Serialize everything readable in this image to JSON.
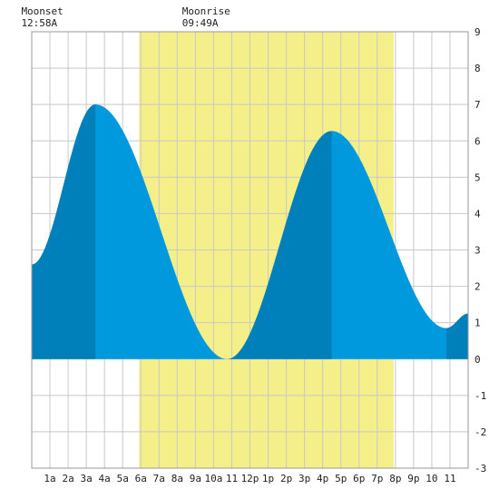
{
  "chart_data": {
    "type": "area",
    "title": "",
    "xlabel": "",
    "ylabel": "",
    "x_unit": "hours after midnight",
    "xlim": [
      0,
      24
    ],
    "ylim": [
      -3,
      9
    ],
    "y_ticks": [
      -3,
      -2,
      -1,
      0,
      1,
      2,
      3,
      4,
      5,
      6,
      7,
      8,
      9
    ],
    "x_tick_labels": [
      {
        "hour": 1,
        "label": "1a"
      },
      {
        "hour": 2,
        "label": "2a"
      },
      {
        "hour": 3,
        "label": "3a"
      },
      {
        "hour": 4,
        "label": "4a"
      },
      {
        "hour": 5,
        "label": "5a"
      },
      {
        "hour": 6,
        "label": "6a"
      },
      {
        "hour": 7,
        "label": "7a"
      },
      {
        "hour": 8,
        "label": "8a"
      },
      {
        "hour": 9,
        "label": "9a"
      },
      {
        "hour": 10,
        "label": "10a"
      },
      {
        "hour": 11,
        "label": "11"
      },
      {
        "hour": 12,
        "label": "12p"
      },
      {
        "hour": 13,
        "label": "1p"
      },
      {
        "hour": 14,
        "label": "2p"
      },
      {
        "hour": 15,
        "label": "3p"
      },
      {
        "hour": 16,
        "label": "4p"
      },
      {
        "hour": 17,
        "label": "5p"
      },
      {
        "hour": 18,
        "label": "6p"
      },
      {
        "hour": 19,
        "label": "7p"
      },
      {
        "hour": 20,
        "label": "8p"
      },
      {
        "hour": 21,
        "label": "9p"
      },
      {
        "hour": 22,
        "label": "10"
      },
      {
        "hour": 23,
        "label": "11"
      }
    ],
    "grid": true,
    "daylight": {
      "start_hour": 5.9,
      "end_hour": 19.9,
      "color": "#f5ef8a"
    },
    "tide_extremes": [
      {
        "hour": 0.0,
        "value": 2.6
      },
      {
        "hour": 3.5,
        "value": 7.0
      },
      {
        "hour": 10.75,
        "value": 0.0
      },
      {
        "hour": 16.5,
        "value": 6.27
      },
      {
        "hour": 22.8,
        "value": 0.85
      },
      {
        "hour": 24.0,
        "value": 1.25
      }
    ],
    "dark_bands": [
      {
        "start_hour": 0.0,
        "end_hour": 3.5
      },
      {
        "start_hour": 10.75,
        "end_hour": 16.5
      },
      {
        "start_hour": 22.8,
        "end_hour": 24.0
      }
    ],
    "colors": {
      "fill": "#0099dd",
      "fill_dark": "#0080bb",
      "grid": "#c8c8c8",
      "background": "#ffffff"
    },
    "annotations": [
      {
        "name": "moonset",
        "title": "Moonset",
        "time": "12:58A",
        "hour": 0.97
      },
      {
        "name": "moonrise",
        "title": "Moonrise",
        "time": "09:49A",
        "hour": 9.82
      }
    ]
  }
}
